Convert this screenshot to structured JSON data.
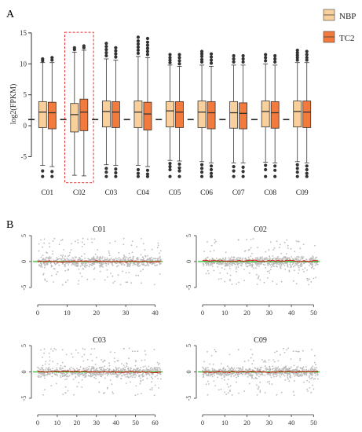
{
  "panels": {
    "a_label": "A",
    "b_label": "B"
  },
  "colors": {
    "nbp": "#f9cf9c",
    "tc2": "#f27a3c",
    "box_stroke": "#333333",
    "highlight": "#e03030",
    "scatter": "#bbbbbb",
    "line_red": "#dd1111",
    "line_green": "#22bb22"
  },
  "chart_data": [
    {
      "type": "box",
      "panel": "A",
      "ylabel": "log2(FPKM)",
      "ylim": [
        -9,
        16
      ],
      "yticks": [
        -5,
        0,
        5,
        10,
        15
      ],
      "categories": [
        "C01",
        "C02",
        "C03",
        "C04",
        "C05",
        "C06",
        "C07",
        "C08",
        "C09"
      ],
      "highlighted_category": "C02",
      "reference_line_y": 1,
      "legend_position": "top-right",
      "series": [
        {
          "name": "NBP",
          "boxes": [
            {
              "q1": -0.3,
              "median": 2.2,
              "q3": 3.9,
              "whisker_low": -6.4,
              "whisker_high": 10.2,
              "outliers_high": [
                10.5,
                10.8
              ],
              "outliers_low": [
                -7.3,
                -8.2
              ]
            },
            {
              "q1": -1.0,
              "median": 1.8,
              "q3": 3.6,
              "whisker_low": -8.0,
              "whisker_high": 11.9,
              "outliers_high": [
                12.3,
                12.6
              ],
              "outliers_low": []
            },
            {
              "q1": -0.2,
              "median": 2.3,
              "q3": 4.0,
              "whisker_low": -6.3,
              "whisker_high": 10.8,
              "outliers_high": [
                11.3,
                11.8,
                12.3,
                12.8,
                13.3
              ],
              "outliers_low": [
                -6.9,
                -7.5,
                -8.2
              ]
            },
            {
              "q1": -0.3,
              "median": 2.2,
              "q3": 4.0,
              "whisker_low": -6.4,
              "whisker_high": 11.2,
              "outliers_high": [
                11.7,
                12.2,
                12.7,
                13.2,
                13.7,
                14.3
              ],
              "outliers_low": [
                -7.1,
                -7.7,
                -8.2
              ]
            },
            {
              "q1": -0.2,
              "median": 2.4,
              "q3": 3.9,
              "whisker_low": -5.6,
              "whisker_high": 9.8,
              "outliers_high": [
                10.2,
                10.6,
                11.0,
                11.5
              ],
              "outliers_low": [
                -6.1,
                -6.6,
                -7.1,
                -8.2
              ]
            },
            {
              "q1": -0.3,
              "median": 2.2,
              "q3": 4.0,
              "whisker_low": -5.8,
              "whisker_high": 9.8,
              "outliers_high": [
                10.3,
                10.7,
                11.2,
                11.6,
                12.0
              ],
              "outliers_low": [
                -6.3,
                -6.9,
                -7.5,
                -8.2
              ]
            },
            {
              "q1": -0.4,
              "median": 2.1,
              "q3": 3.9,
              "whisker_low": -6.0,
              "whisker_high": 9.8,
              "outliers_high": [
                10.3,
                10.8,
                11.3
              ],
              "outliers_low": [
                -6.6,
                -7.3,
                -8.2
              ]
            },
            {
              "q1": -0.2,
              "median": 2.3,
              "q3": 4.0,
              "whisker_low": -5.9,
              "whisker_high": 10.0,
              "outliers_high": [
                10.5,
                11.0,
                11.5
              ],
              "outliers_low": [
                -6.4,
                -7.1,
                -8.2
              ]
            },
            {
              "q1": -0.2,
              "median": 2.3,
              "q3": 4.0,
              "whisker_low": -5.8,
              "whisker_high": 10.2,
              "outliers_high": [
                10.6,
                11.0,
                11.4,
                11.8,
                12.2
              ],
              "outliers_low": [
                -6.3,
                -6.9,
                -7.5,
                -8.2
              ]
            }
          ]
        },
        {
          "name": "TC2",
          "boxes": [
            {
              "q1": -0.5,
              "median": 2.1,
              "q3": 3.8,
              "whisker_low": -6.6,
              "whisker_high": 10.2,
              "outliers_high": [
                10.6,
                11.0
              ],
              "outliers_low": [
                -7.4,
                -8.2
              ]
            },
            {
              "q1": -0.8,
              "median": 2.2,
              "q3": 4.3,
              "whisker_low": -8.1,
              "whisker_high": 12.2,
              "outliers_high": [
                12.6,
                12.9
              ],
              "outliers_low": []
            },
            {
              "q1": -0.3,
              "median": 2.2,
              "q3": 3.9,
              "whisker_low": -6.4,
              "whisker_high": 10.6,
              "outliers_high": [
                11.1,
                11.6,
                12.1,
                12.6
              ],
              "outliers_low": [
                -7.0,
                -7.6,
                -8.2
              ]
            },
            {
              "q1": -0.7,
              "median": 1.9,
              "q3": 3.8,
              "whisker_low": -6.6,
              "whisker_high": 11.0,
              "outliers_high": [
                11.5,
                12.0,
                12.5,
                13.0,
                13.5,
                14.1
              ],
              "outliers_low": [
                -7.2,
                -7.8,
                -8.2
              ]
            },
            {
              "q1": -0.3,
              "median": 2.2,
              "q3": 3.9,
              "whisker_low": -5.7,
              "whisker_high": 9.6,
              "outliers_high": [
                10.0,
                10.5,
                11.0,
                11.5
              ],
              "outliers_low": [
                -6.2,
                -6.8,
                -7.3,
                -8.2
              ]
            },
            {
              "q1": -0.5,
              "median": 2.1,
              "q3": 3.9,
              "whisker_low": -6.0,
              "whisker_high": 9.6,
              "outliers_high": [
                10.1,
                10.6,
                11.1,
                11.6
              ],
              "outliers_low": [
                -6.5,
                -7.1,
                -7.7,
                -8.2
              ]
            },
            {
              "q1": -0.5,
              "median": 2.0,
              "q3": 3.7,
              "whisker_low": -6.0,
              "whisker_high": 9.8,
              "outliers_high": [
                10.3,
                10.8,
                11.3
              ],
              "outliers_low": [
                -6.7,
                -7.4,
                -8.2
              ]
            },
            {
              "q1": -0.4,
              "median": 2.1,
              "q3": 3.9,
              "whisker_low": -6.0,
              "whisker_high": 9.8,
              "outliers_high": [
                10.3,
                10.8,
                11.3
              ],
              "outliers_low": [
                -6.5,
                -7.2,
                -8.2
              ]
            },
            {
              "q1": -0.3,
              "median": 2.2,
              "q3": 4.0,
              "whisker_low": -6.0,
              "whisker_high": 10.2,
              "outliers_high": [
                10.6,
                11.0,
                11.5,
                12.0
              ],
              "outliers_low": [
                -6.5,
                -7.1,
                -7.7,
                -8.2
              ]
            }
          ]
        }
      ]
    },
    {
      "type": "scatter",
      "panel": "B",
      "title": "C01",
      "xlim": [
        0,
        42
      ],
      "xticks": [
        0,
        10,
        20,
        30,
        40
      ],
      "ylim": [
        -5,
        5
      ],
      "yticks": [
        -5,
        0,
        5
      ],
      "reference_line_y": 0,
      "note": "genome positions vs log2 ratio; grey points with smoothed red trend"
    },
    {
      "type": "scatter",
      "panel": "B",
      "title": "C02",
      "xlim": [
        0,
        52
      ],
      "xticks": [
        0,
        10,
        20,
        30,
        40,
        50
      ],
      "ylim": [
        -5,
        5
      ],
      "yticks": [
        -5,
        0,
        5
      ],
      "reference_line_y": 0
    },
    {
      "type": "scatter",
      "panel": "B",
      "title": "C03",
      "xlim": [
        0,
        63
      ],
      "xticks": [
        0,
        10,
        20,
        30,
        40,
        50,
        60
      ],
      "ylim": [
        -5,
        5
      ],
      "yticks": [
        -5,
        0,
        5
      ],
      "reference_line_y": 0
    },
    {
      "type": "scatter",
      "panel": "B",
      "title": "C09",
      "xlim": [
        0,
        52
      ],
      "xticks": [
        0,
        10,
        20,
        30,
        40,
        50
      ],
      "ylim": [
        -5,
        5
      ],
      "yticks": [
        -5,
        0,
        5
      ],
      "reference_line_y": 0
    }
  ]
}
